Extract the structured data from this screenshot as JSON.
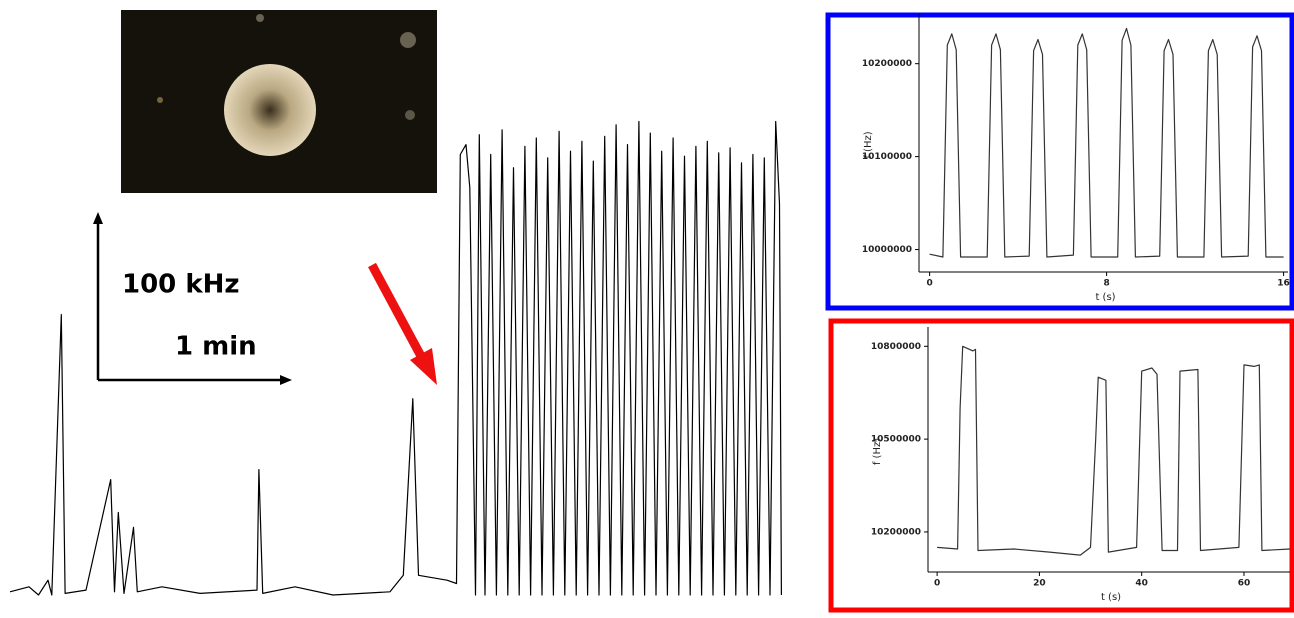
{
  "chart_data": [
    {
      "type": "line",
      "color": "#000000",
      "y_scale_label": "100 kHz",
      "x_scale_label": "1 min",
      "xlim": [
        0,
        4.1
      ],
      "ylim": [
        0,
        300
      ],
      "x": [
        0,
        0.1,
        0.15,
        0.2,
        0.22,
        0.27,
        0.29,
        0.4,
        0.53,
        0.55,
        0.57,
        0.6,
        0.65,
        0.67,
        0.8,
        1.0,
        1.3,
        1.31,
        1.33,
        1.5,
        1.7,
        2.0,
        2.07,
        2.12,
        2.15,
        2.3,
        2.35,
        2.37,
        2.4,
        2.42,
        2.45,
        2.47,
        2.5,
        2.53,
        2.56,
        2.59,
        2.62,
        2.65,
        2.68,
        2.71,
        2.74,
        2.77,
        2.8,
        2.83,
        2.86,
        2.89,
        2.92,
        2.95,
        2.98,
        3.01,
        3.04,
        3.07,
        3.1,
        3.13,
        3.16,
        3.19,
        3.22,
        3.25,
        3.28,
        3.31,
        3.34,
        3.37,
        3.4,
        3.43,
        3.46,
        3.49,
        3.52,
        3.55,
        3.58,
        3.61,
        3.64,
        3.67,
        3.7,
        3.73,
        3.76,
        3.79,
        3.82,
        3.85,
        3.88,
        3.91,
        3.94,
        3.97,
        4.0,
        4.03,
        4.05,
        4.06
      ],
      "values": [
        5,
        8,
        3,
        12,
        3,
        173,
        4,
        6,
        73,
        5,
        53,
        4,
        44,
        5,
        8,
        4,
        6,
        79,
        4,
        8,
        3,
        5,
        15,
        122,
        15,
        12,
        10,
        270,
        276,
        250,
        3,
        282,
        3,
        270,
        3,
        285,
        3,
        262,
        3,
        275,
        3,
        280,
        3,
        268,
        3,
        284,
        3,
        272,
        3,
        278,
        3,
        266,
        3,
        281,
        3,
        288,
        3,
        276,
        3,
        290,
        3,
        283,
        3,
        272,
        3,
        280,
        3,
        269,
        3,
        275,
        3,
        278,
        3,
        271,
        3,
        274,
        3,
        265,
        3,
        270,
        3,
        268,
        3,
        290,
        240,
        3
      ]
    },
    {
      "type": "line",
      "color": "#333333",
      "frame_color": "#0000ff",
      "xlabel": "t (s)",
      "ylabel": "f (Hz)",
      "xlim": [
        -0.3,
        16.2
      ],
      "ylim": [
        9978000,
        10247000
      ],
      "xticks": [
        0,
        8,
        16
      ],
      "yticks": [
        10000000,
        10100000,
        10200000
      ],
      "x": [
        0,
        0.6,
        0.8,
        1.0,
        1.2,
        1.4,
        2.6,
        2.8,
        3.0,
        3.2,
        3.4,
        4.5,
        4.7,
        4.9,
        5.1,
        5.3,
        6.5,
        6.7,
        6.9,
        7.1,
        7.3,
        8.5,
        8.7,
        8.9,
        9.1,
        9.3,
        10.4,
        10.6,
        10.8,
        11.0,
        11.2,
        12.4,
        12.6,
        12.8,
        13.0,
        13.2,
        14.4,
        14.6,
        14.8,
        15.0,
        15.2,
        16
      ],
      "values": [
        9995000,
        9992000,
        10220000,
        10232000,
        10215000,
        9992000,
        9992000,
        10220000,
        10232000,
        10215000,
        9992000,
        9993000,
        10214000,
        10226000,
        10210000,
        9992000,
        9994000,
        10220000,
        10232000,
        10215000,
        9992000,
        9992000,
        10225000,
        10238000,
        10220000,
        9992000,
        9993000,
        10214000,
        10226000,
        10210000,
        9992000,
        9992000,
        10214000,
        10226000,
        10210000,
        9992000,
        9993000,
        10218000,
        10230000,
        10214000,
        9992000,
        9992000
      ]
    },
    {
      "type": "line",
      "color": "#333333",
      "frame_color": "#ff0000",
      "xlabel": "t (s)",
      "ylabel": "f (Hz)",
      "xlim": [
        -1,
        69
      ],
      "ylim": [
        10077000,
        10843000
      ],
      "xticks": [
        0,
        20,
        40,
        60
      ],
      "yticks": [
        10200000,
        10500000,
        10800000
      ],
      "x": [
        0,
        4,
        4.5,
        5,
        7,
        7.5,
        8,
        15,
        22,
        28,
        30,
        31,
        31.5,
        33,
        33.5,
        39,
        40,
        42,
        43,
        44,
        47,
        47.5,
        51,
        51.5,
        59,
        60,
        62,
        63,
        63.5,
        69
      ],
      "values": [
        10150000,
        10145000,
        10600000,
        10800000,
        10785000,
        10790000,
        10140000,
        10145000,
        10135000,
        10125000,
        10150000,
        10500000,
        10700000,
        10690000,
        10135000,
        10150000,
        10720000,
        10730000,
        10710000,
        10140000,
        10140000,
        10720000,
        10725000,
        10140000,
        10150000,
        10740000,
        10735000,
        10740000,
        10140000,
        10145000
      ]
    }
  ]
}
